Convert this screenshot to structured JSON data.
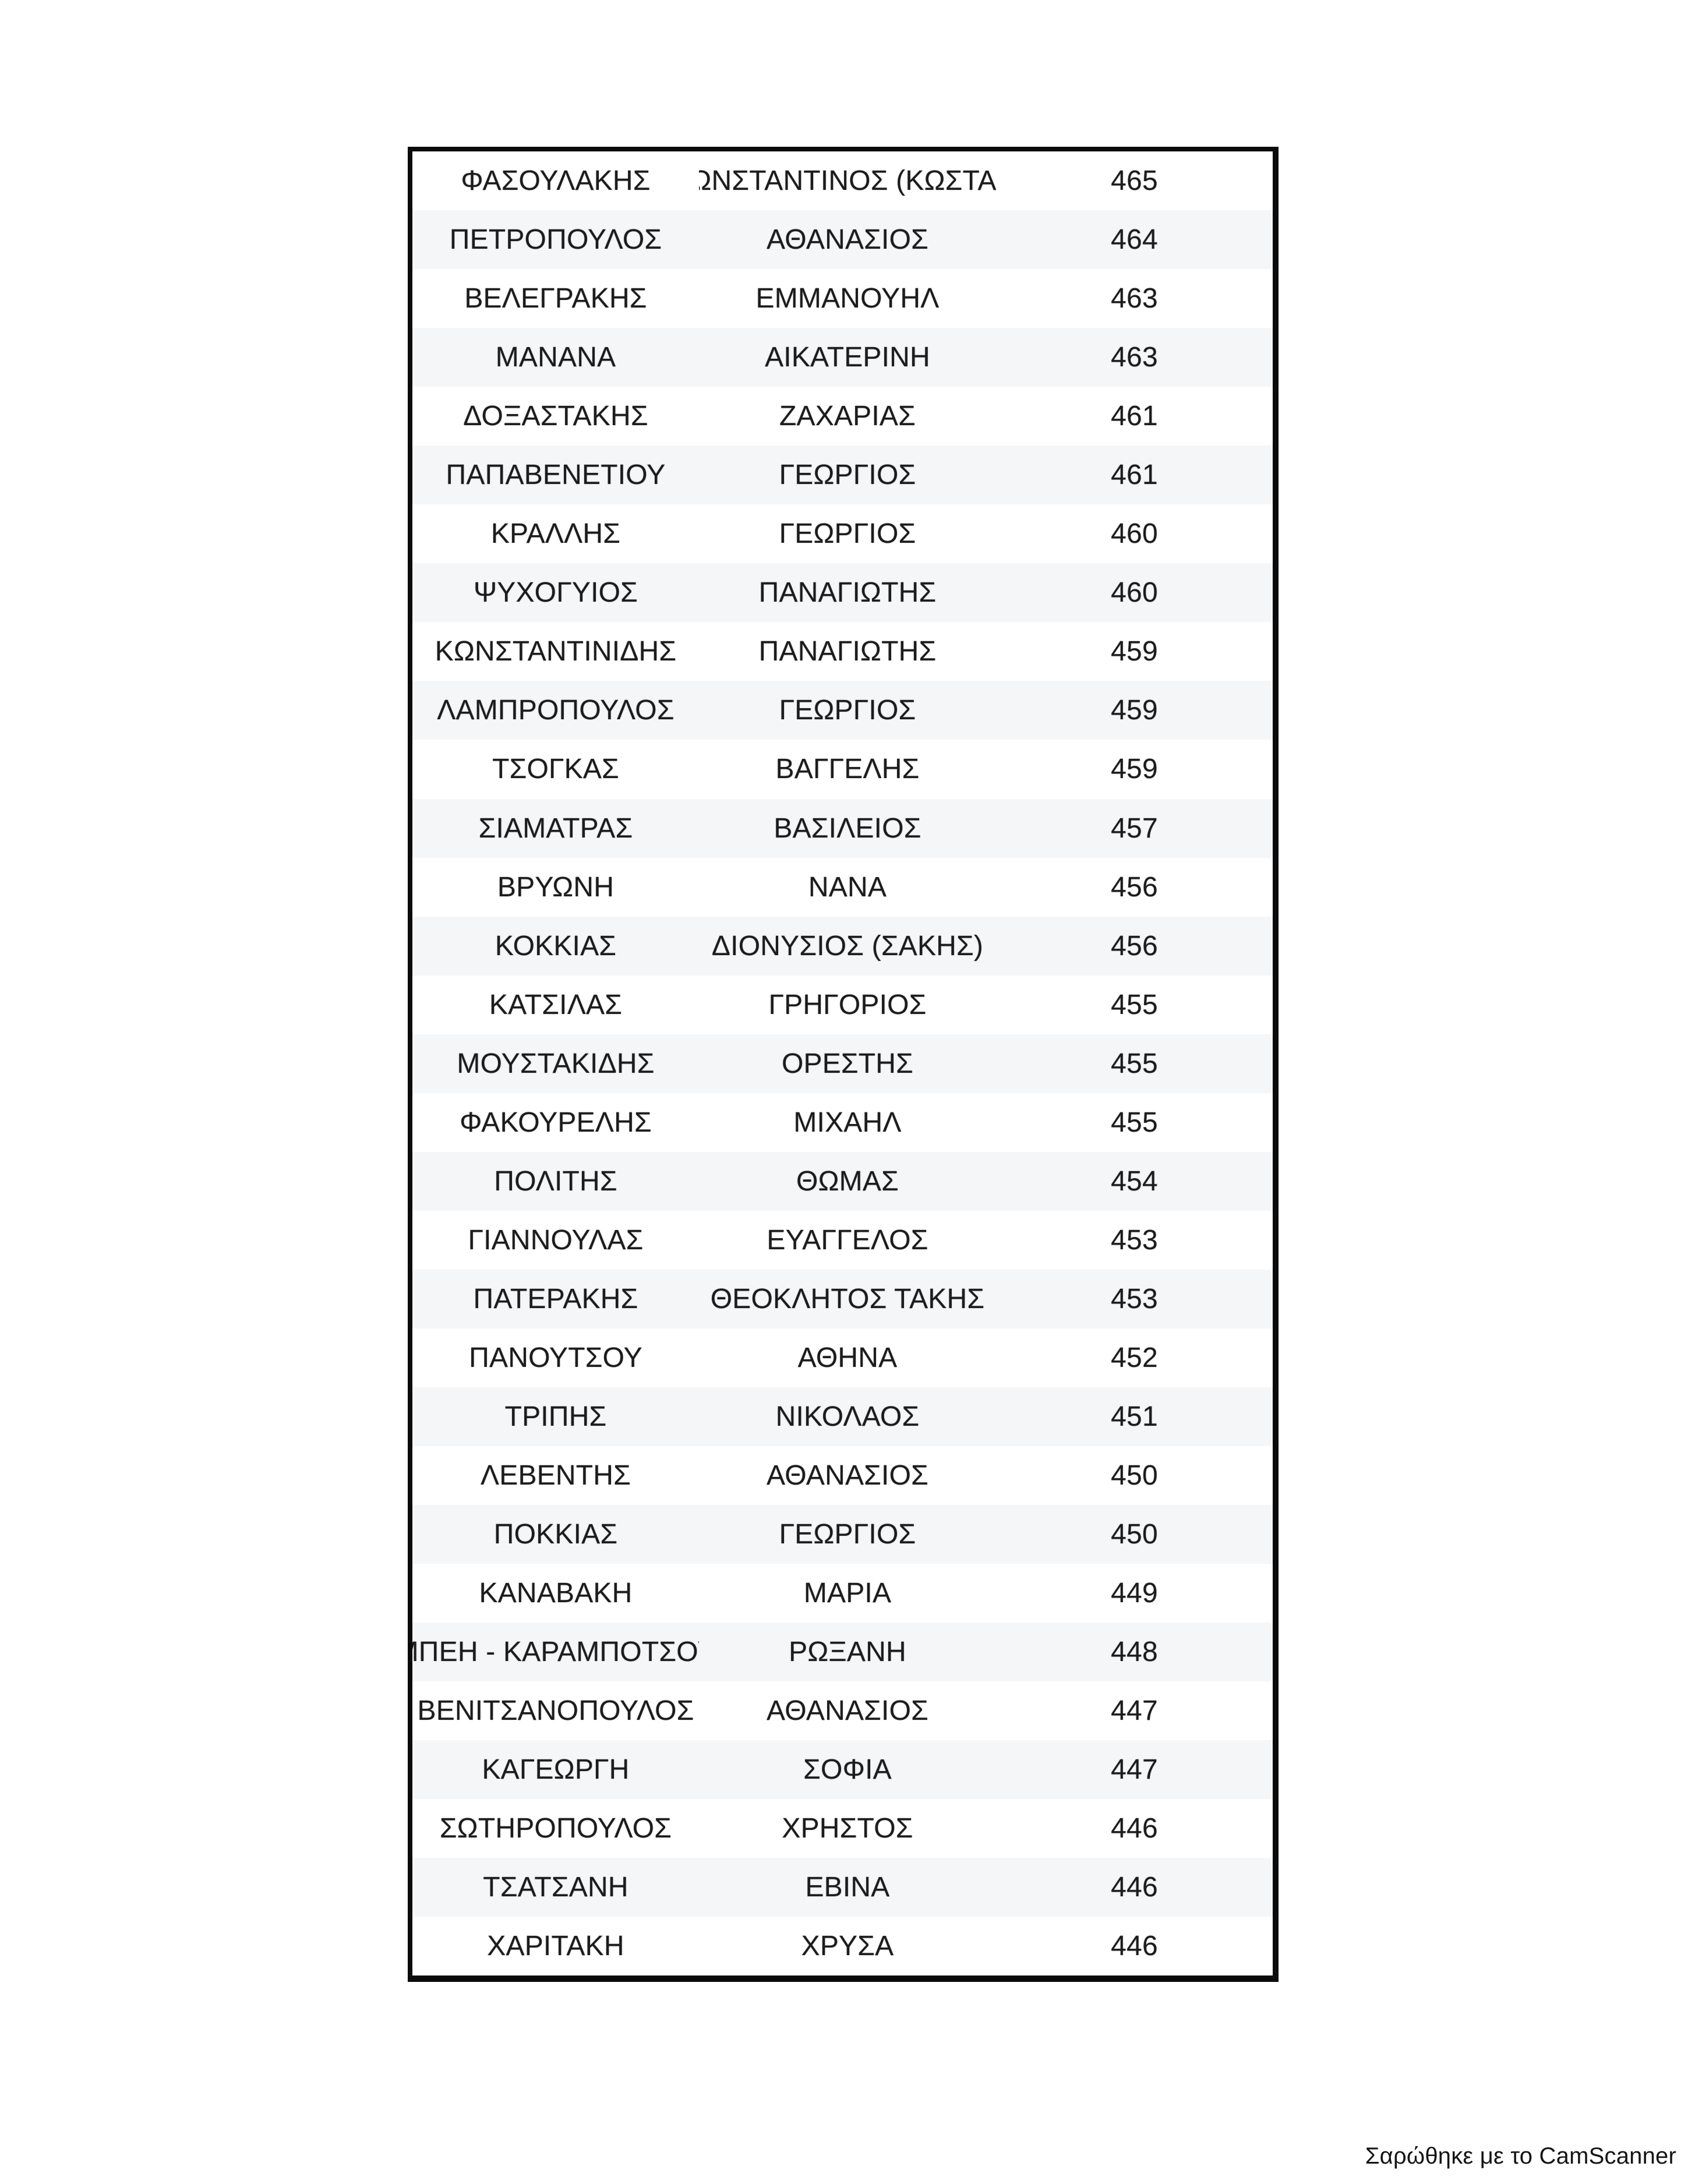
{
  "page": {
    "background": "#ffffff"
  },
  "table": {
    "border_color": "#0b0b0b",
    "alt_row_bg": "#f5f6f8",
    "text_color": "#1c1c1c",
    "columns": [
      "surname",
      "first_name",
      "votes"
    ],
    "rows": [
      {
        "surname": "ΦΑΣΟΥΛΑΚΗΣ",
        "first_name": "ΚΩΝΣΤΑΝΤΙΝΟΣ (ΚΩΣΤΑΣ)",
        "votes": "465"
      },
      {
        "surname": "ΠΕΤΡΟΠΟΥΛΟΣ",
        "first_name": "ΑΘΑΝΑΣΙΟΣ",
        "votes": "464"
      },
      {
        "surname": "ΒΕΛΕΓΡΑΚΗΣ",
        "first_name": "ΕΜΜΑΝΟΥΗΛ",
        "votes": "463"
      },
      {
        "surname": "ΜΑΝΑΝΑ",
        "first_name": "ΑΙΚΑΤΕΡΙΝΗ",
        "votes": "463"
      },
      {
        "surname": "ΔΟΞΑΣΤΑΚΗΣ",
        "first_name": "ΖΑΧΑΡΙΑΣ",
        "votes": "461"
      },
      {
        "surname": "ΠΑΠΑΒΕΝΕΤΙΟΥ",
        "first_name": "ΓΕΩΡΓΙΟΣ",
        "votes": "461"
      },
      {
        "surname": "ΚΡΑΛΛΗΣ",
        "first_name": "ΓΕΩΡΓΙΟΣ",
        "votes": "460"
      },
      {
        "surname": "ΨΥΧΟΓΥΙΟΣ",
        "first_name": "ΠΑΝΑΓΙΩΤΗΣ",
        "votes": "460"
      },
      {
        "surname": "ΚΩΝΣΤΑΝΤΙΝΙΔΗΣ",
        "first_name": "ΠΑΝΑΓΙΩΤΗΣ",
        "votes": "459"
      },
      {
        "surname": "ΛΑΜΠΡΟΠΟΥΛΟΣ",
        "first_name": "ΓΕΩΡΓΙΟΣ",
        "votes": "459"
      },
      {
        "surname": "ΤΣΟΓΚΑΣ",
        "first_name": "ΒΑΓΓΕΛΗΣ",
        "votes": "459"
      },
      {
        "surname": "ΣΙΑΜΑΤΡΑΣ",
        "first_name": "ΒΑΣΙΛΕΙΟΣ",
        "votes": "457"
      },
      {
        "surname": "ΒΡΥΩΝΗ",
        "first_name": "ΝΑΝΑ",
        "votes": "456"
      },
      {
        "surname": "ΚΟΚΚΙΑΣ",
        "first_name": "ΔΙΟΝΥΣΙΟΣ (ΣΑΚΗΣ)",
        "votes": "456"
      },
      {
        "surname": "ΚΑΤΣΙΛΑΣ",
        "first_name": "ΓΡΗΓΟΡΙΟΣ",
        "votes": "455"
      },
      {
        "surname": "ΜΟΥΣΤΑΚΙΔΗΣ",
        "first_name": "ΟΡΕΣΤΗΣ",
        "votes": "455"
      },
      {
        "surname": "ΦΑΚΟΥΡΕΛΗΣ",
        "first_name": "ΜΙΧΑΗΛ",
        "votes": "455"
      },
      {
        "surname": "ΠΟΛΙΤΗΣ",
        "first_name": "ΘΩΜΑΣ",
        "votes": "454"
      },
      {
        "surname": "ΓΙΑΝΝΟΥΛΑΣ",
        "first_name": "ΕΥΑΓΓΕΛΟΣ",
        "votes": "453"
      },
      {
        "surname": "ΠΑΤΕΡΑΚΗΣ",
        "first_name": "ΘΕΟΚΛΗΤΟΣ ΤΑΚΗΣ",
        "votes": "453"
      },
      {
        "surname": "ΠΑΝΟΥΤΣΟΥ",
        "first_name": "ΑΘΗΝΑ",
        "votes": "452"
      },
      {
        "surname": "ΤΡΙΠΗΣ",
        "first_name": "ΝΙΚΟΛΑΟΣ",
        "votes": "451"
      },
      {
        "surname": "ΛΕΒΕΝΤΗΣ",
        "first_name": "ΑΘΑΝΑΣΙΟΣ",
        "votes": "450"
      },
      {
        "surname": "ΠΟΚΚΙΑΣ",
        "first_name": "ΓΕΩΡΓΙΟΣ",
        "votes": "450"
      },
      {
        "surname": "ΚΑΝΑΒΑΚΗ",
        "first_name": "ΜΑΡΙΑ",
        "votes": "449"
      },
      {
        "surname": "ΜΠΕΗ - ΚΑΡΑΜΠΟΤΣΟΥ",
        "first_name": "ΡΩΞΑΝΗ",
        "votes": "448"
      },
      {
        "surname": "ΒΕΝΙΤΣΑΝΟΠΟΥΛΟΣ",
        "first_name": "ΑΘΑΝΑΣΙΟΣ",
        "votes": "447"
      },
      {
        "surname": "ΚΑΓΕΩΡΓΗ",
        "first_name": "ΣΟΦΙΑ",
        "votes": "447"
      },
      {
        "surname": "ΣΩΤΗΡΟΠΟΥΛΟΣ",
        "first_name": "ΧΡΗΣΤΟΣ",
        "votes": "446"
      },
      {
        "surname": "ΤΣΑΤΣΑΝΗ",
        "first_name": "ΕΒΙΝΑ",
        "votes": "446"
      },
      {
        "surname": "ΧΑΡΙΤΑΚΗ",
        "first_name": "ΧΡΥΣΑ",
        "votes": "446"
      }
    ]
  },
  "footer": {
    "scanned_with_label": "Σαρώθηκε με το CamScanner",
    "text_color": "#141414"
  }
}
